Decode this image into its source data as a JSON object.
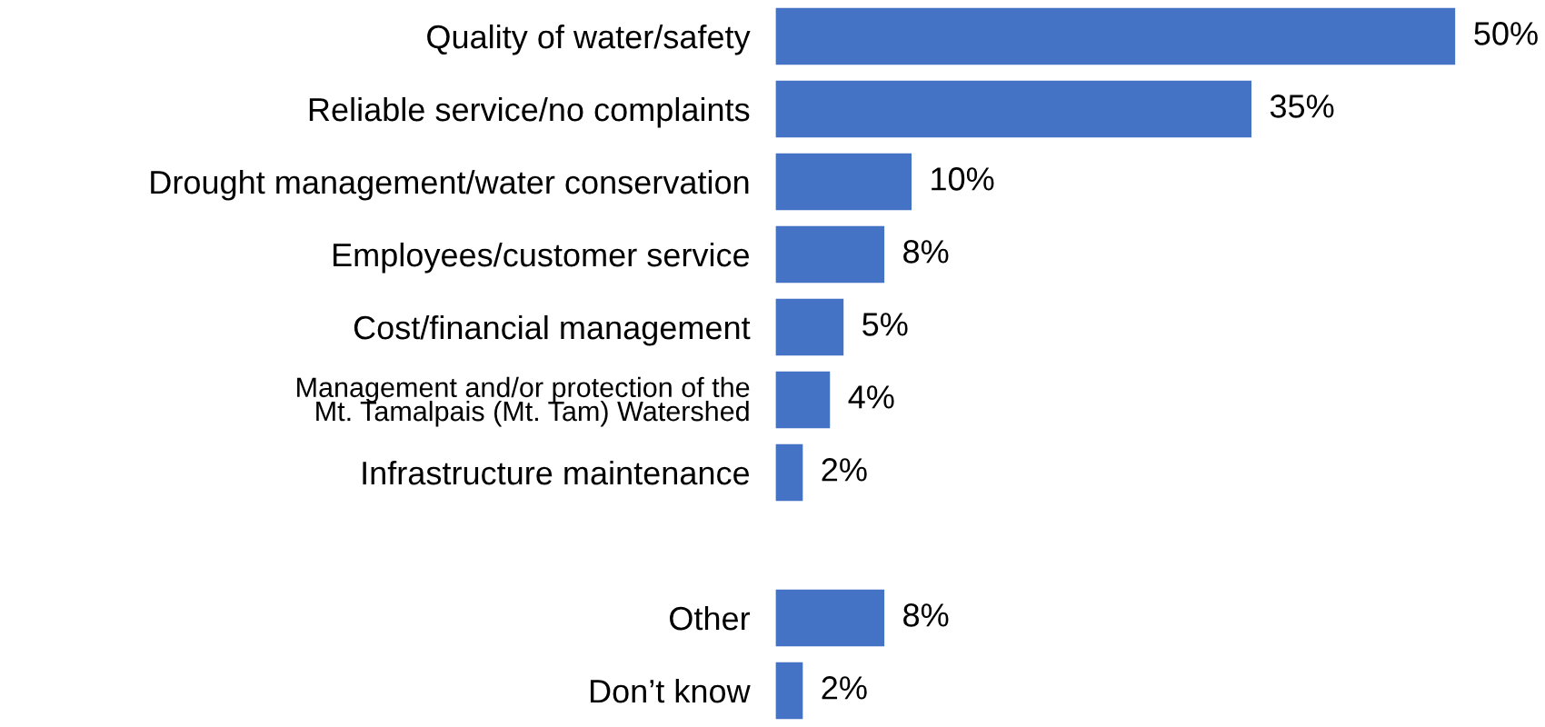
{
  "chart_data": {
    "type": "bar",
    "orientation": "horizontal",
    "categories": [
      "Quality of water/safety",
      "Reliable service/no complaints",
      "Drought management/water conservation",
      "Employees/customer service",
      "Cost/financial management",
      "Management and/or protection of the\nMt. Tamalpais (Mt. Tam) Watershed",
      "Infrastructure maintenance",
      null,
      "Other",
      "Don’t know"
    ],
    "values": [
      50,
      35,
      10,
      8,
      5,
      4,
      2,
      null,
      8,
      2
    ],
    "value_labels": [
      "50%",
      "35%",
      "10%",
      "8%",
      "5%",
      "4%",
      "2%",
      null,
      "8%",
      "2%"
    ],
    "color": "#4472c4",
    "grid": false,
    "legend": false
  }
}
